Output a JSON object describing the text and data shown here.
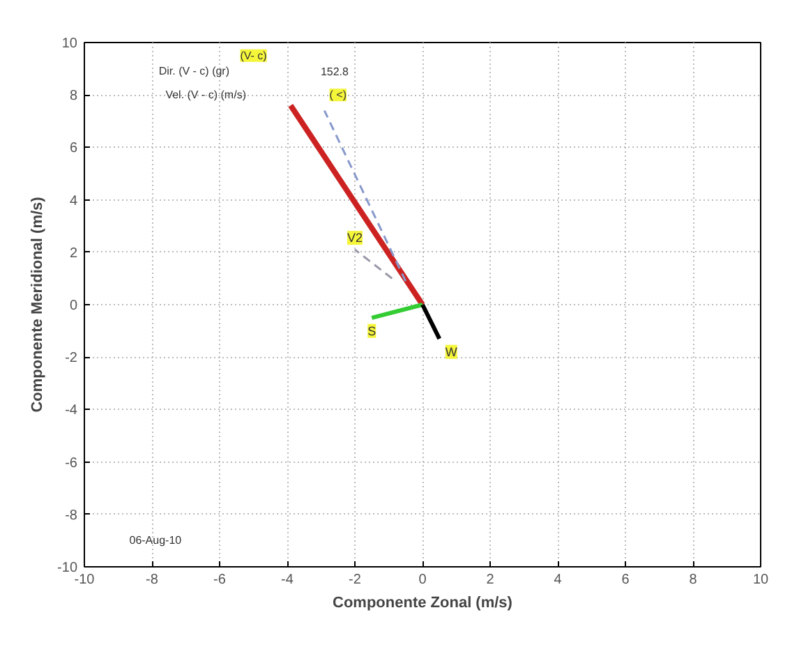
{
  "chart_data": {
    "type": "line",
    "xlabel": "Componente Zonal (m/s)",
    "ylabel": "Componente Meridional (m/s)",
    "xlim": [
      -10,
      10
    ],
    "ylim": [
      -10,
      10
    ],
    "xticks": [
      -10,
      -8,
      -6,
      -4,
      -2,
      0,
      2,
      4,
      6,
      8,
      10
    ],
    "yticks": [
      -10,
      -8,
      -6,
      -4,
      -2,
      0,
      2,
      4,
      6,
      8,
      10
    ],
    "grid": true,
    "series": [
      {
        "color": "#cc2222",
        "x": [
          0,
          -3.9
        ],
        "values": [
          0,
          7.6
        ]
      },
      {
        "color": "#8899cc",
        "x": [
          -0.5,
          -2.9
        ],
        "values": [
          0.9,
          7.4
        ],
        "line_style": "dashed"
      },
      {
        "name": "V2",
        "color": "#9999aa",
        "x": [
          -0.9,
          -2.0
        ],
        "values": [
          1.0,
          2.1
        ],
        "line_style": "dashed"
      },
      {
        "name": "S",
        "color": "#33cc33",
        "x": [
          0,
          -1.5
        ],
        "values": [
          0,
          -0.5
        ]
      },
      {
        "name": "W",
        "color": "#000000",
        "x": [
          0,
          0.5
        ],
        "values": [
          0,
          -1.3
        ]
      }
    ],
    "annotations": [
      "(V- c)",
      "Dir. (V - c) (gr)",
      "Vel. (V - c) (m/s)",
      "152.8",
      "( <)",
      "06-Aug-10"
    ]
  }
}
